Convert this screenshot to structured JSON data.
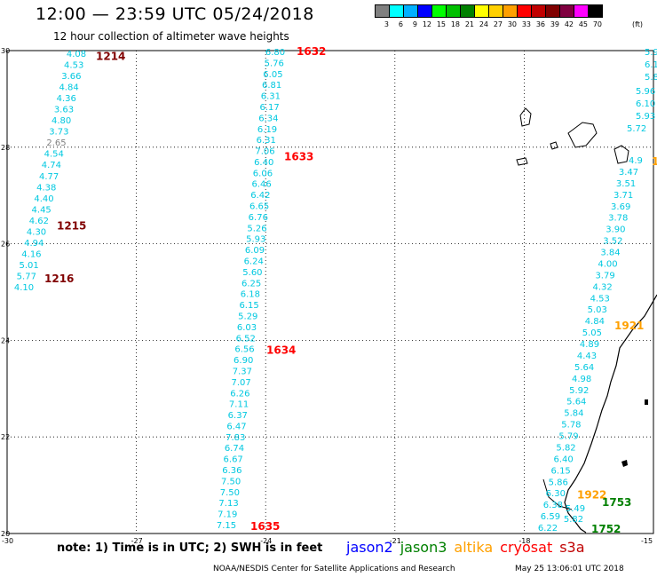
{
  "header": {
    "title": "12:00 — 23:59 UTC 05/24/2018",
    "subtitle": "12 hour collection of altimeter wave heights"
  },
  "legend": {
    "colors": [
      "#808080",
      "#00ffff",
      "#00b0ff",
      "#0000ff",
      "#00ff00",
      "#00c000",
      "#008000",
      "#ffff00",
      "#ffd000",
      "#ffa000",
      "#ff0000",
      "#c00000",
      "#800000",
      "#800040",
      "#ff00ff",
      "#000000"
    ],
    "labels": [
      "3",
      "6",
      "9",
      "12",
      "15",
      "18",
      "21",
      "24",
      "27",
      "30",
      "33",
      "36",
      "39",
      "42",
      "45",
      "70"
    ],
    "unit": "(ft)"
  },
  "axes": {
    "lat_ticks": [
      "30",
      "28",
      "26",
      "24",
      "22",
      "20"
    ],
    "lon_ticks": [
      "-30",
      "-27",
      "-24",
      "-21",
      "-18",
      "-15"
    ]
  },
  "tracks": {
    "track1": {
      "values": [
        "4.08",
        "4.53",
        "3.66",
        "4.84",
        "4.36",
        "3.63",
        "4.80",
        "3.73",
        "2.65",
        "4.54",
        "4.74",
        "4.77",
        "4.38",
        "4.40",
        "4.45",
        "4.62",
        "4.30",
        "4.94",
        "4.16",
        "5.01",
        "5.77",
        "4.10"
      ],
      "colors": {
        "2.65": "#808080"
      },
      "times": [
        {
          "label": "1214",
          "lat": 29.81
        },
        {
          "label": "1215",
          "lat": 26.3
        },
        {
          "label": "1216",
          "lat": 25.2
        }
      ]
    },
    "track2": {
      "values": [
        "6.80",
        "5.76",
        "6.05",
        "6.81",
        "6.31",
        "6.17",
        "6.34",
        "6.19",
        "6.31",
        "7.06",
        "6.40",
        "6.06",
        "6.46",
        "6.42",
        "6.65",
        "6.76",
        "5.26",
        "5.93",
        "6.09",
        "6.24",
        "5.60",
        "6.25",
        "6.18",
        "6.15",
        "5.29",
        "6.03",
        "6.52",
        "6.56",
        "6.90",
        "7.37",
        "7.07",
        "6.26",
        "7.11",
        "6.37",
        "6.47",
        "7.83",
        "6.74",
        "6.67",
        "6.36",
        "7.50",
        "7.50",
        "7.13",
        "7.19",
        "7.15"
      ],
      "times": [
        {
          "label": "1632",
          "lat": 29.98
        },
        {
          "label": "1633",
          "lat": 27.8
        },
        {
          "label": "1634",
          "lat": 23.8
        },
        {
          "label": "1635",
          "lat": 20.15
        }
      ]
    },
    "track3": {
      "values": [
        "3.47",
        "3.51",
        "3.71",
        "3.69",
        "3.78",
        "3.90",
        "3.52",
        "3.84",
        "4.00",
        "3.79",
        "4.32",
        "4.53",
        "5.03",
        "4.84",
        "5.05",
        "4.89",
        "4.43",
        "5.64",
        "4.98",
        "5.92",
        "5.64",
        "5.84",
        "5.78",
        "5.79",
        "5.82",
        "6.40",
        "6.15",
        "5.86",
        "6.30",
        "6.38",
        "6.59",
        "6.22"
      ],
      "times": [
        {
          "label": "1921",
          "lat": 24.3
        },
        {
          "label": "1922",
          "lat": 20.8
        }
      ]
    },
    "track4": {
      "values": [
        "5.49",
        "5.82"
      ],
      "times": [
        {
          "label": "1753",
          "lat": 20.6
        },
        {
          "label": "1752",
          "lat": 20.08
        }
      ]
    },
    "edge_values": [
      "5.9",
      "6.1",
      "5.8",
      "5.96",
      "6.10",
      "5.93",
      "5.72",
      "4.9"
    ],
    "edge_time": "1"
  },
  "footer": {
    "note": "note: 1) Time is in UTC; 2) SWH is in feet",
    "satellites": [
      {
        "name": "jason2",
        "color": "#0000ff"
      },
      {
        "name": "jason3",
        "color": "#008000"
      },
      {
        "name": "altika",
        "color": "#ffa000"
      },
      {
        "name": "cryosat",
        "color": "#ff0000"
      },
      {
        "name": "s3a",
        "color": "#c00000"
      }
    ],
    "credit": "NOAA/NESDIS Center for Satellite Applications and Research",
    "timestamp": "May 25 13:06:01 UTC 2018"
  }
}
